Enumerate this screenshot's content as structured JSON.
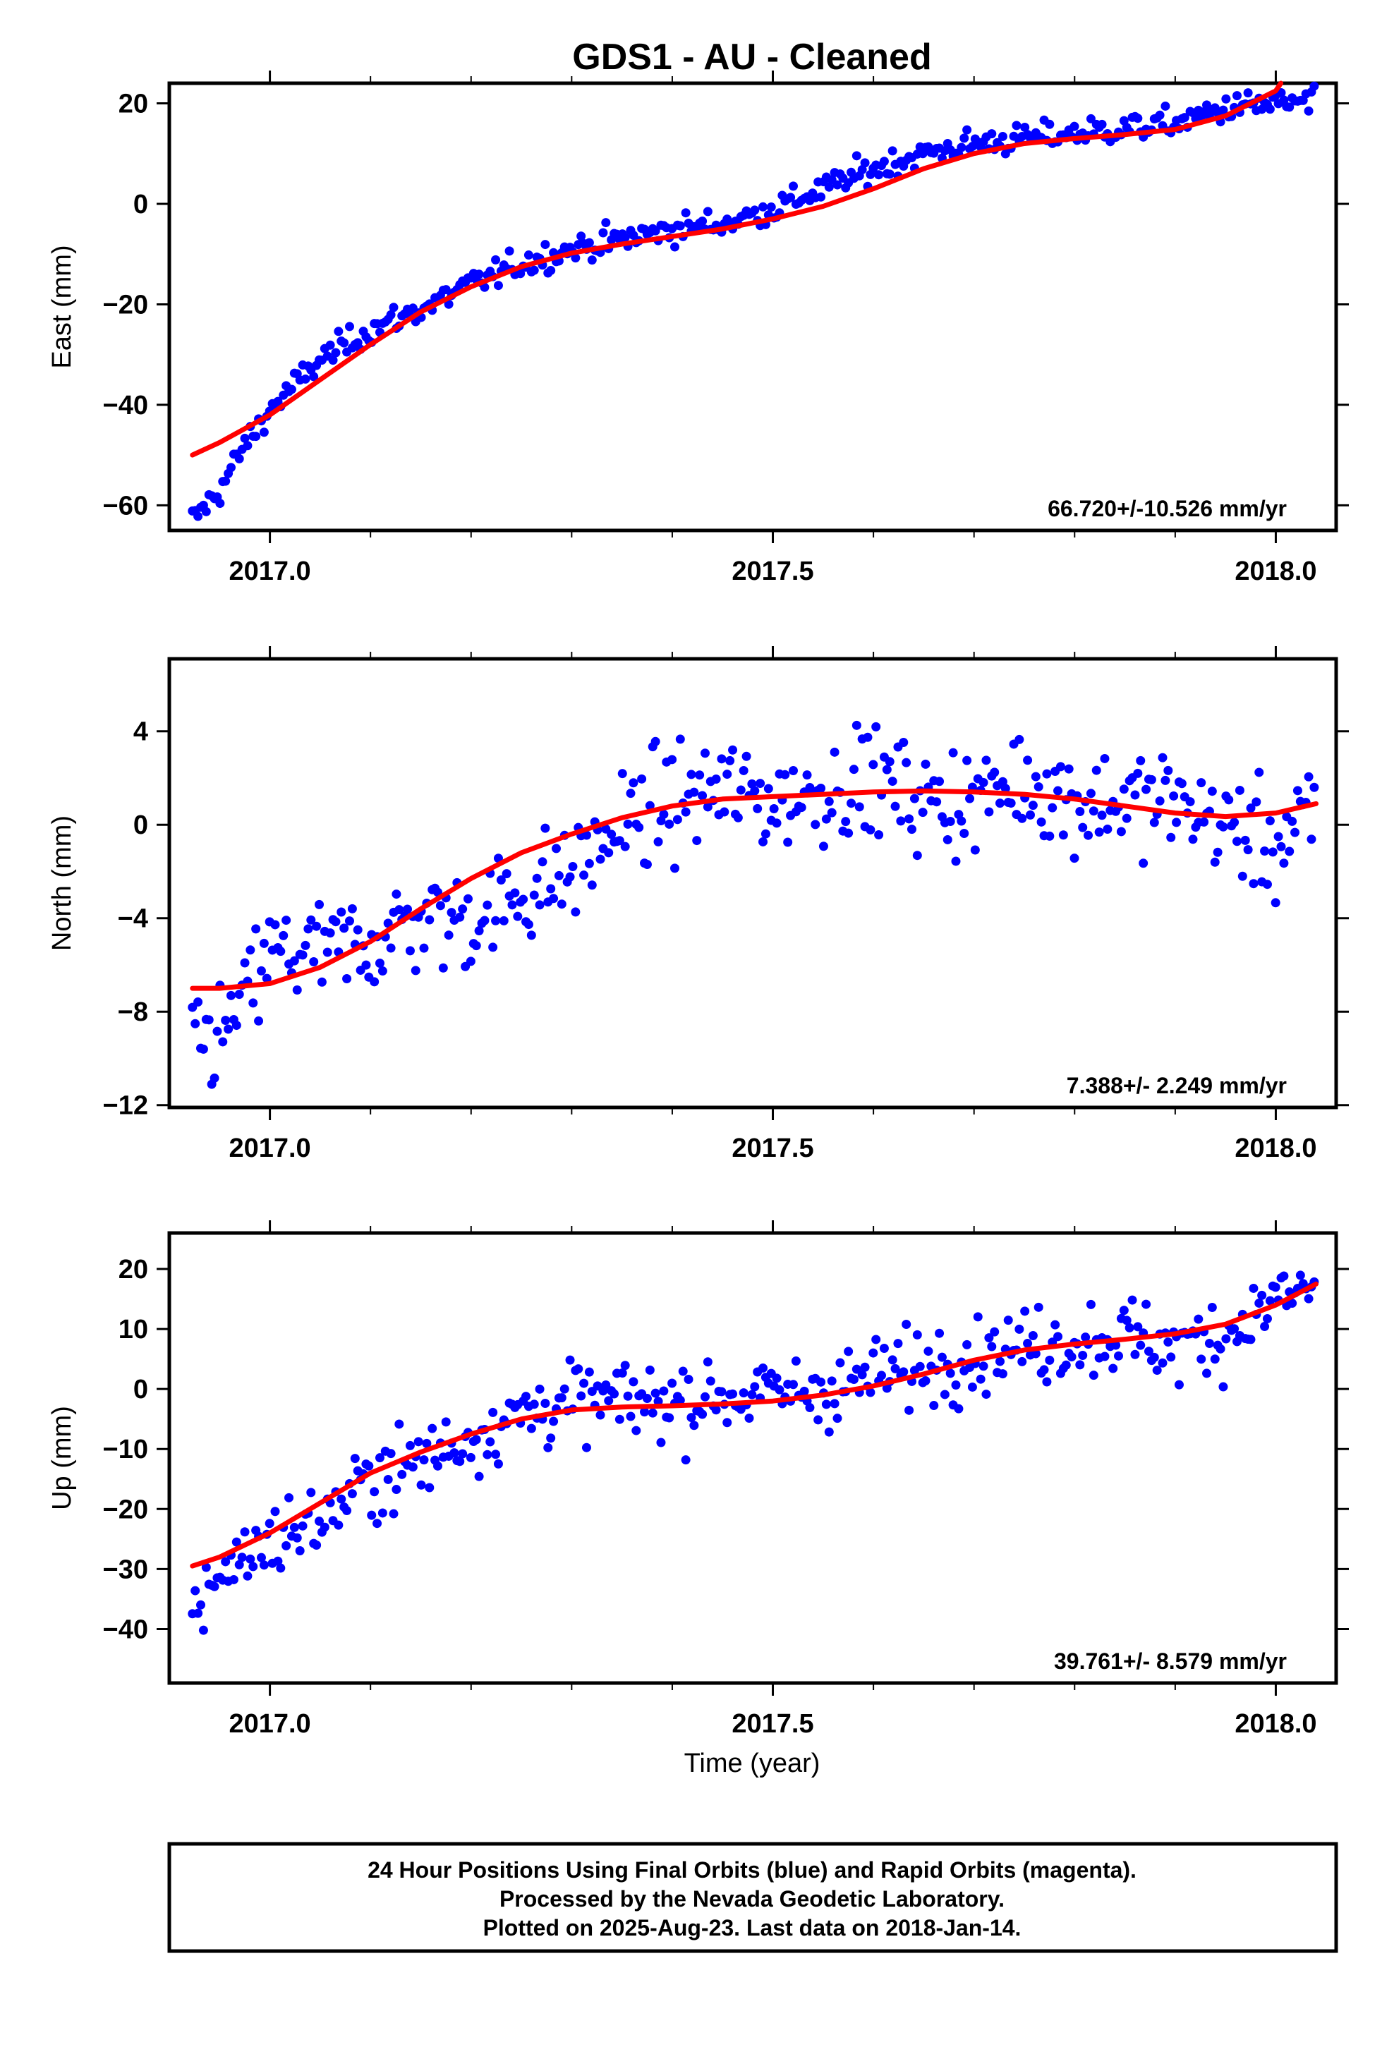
{
  "figure": {
    "title": "GDS1  - AU - Cleaned",
    "xlabel": "Time (year)",
    "footer": [
      "24 Hour Positions Using Final Orbits (blue) and Rapid Orbits (magenta).",
      "Processed by the Nevada Geodetic Laboratory.",
      "Plotted on 2025-Aug-23. Last data on 2018-Jan-14."
    ],
    "colors": {
      "points": "#0000ff",
      "fit": "#ff0000",
      "frame": "#000000"
    }
  },
  "chart_data": [
    {
      "type": "scatter",
      "ylabel": "East (mm)",
      "xlim": [
        2016.9,
        2018.06
      ],
      "ylim": [
        -65,
        24
      ],
      "xticks": [
        2017.0,
        2017.5,
        2018.0
      ],
      "xtick_labels": [
        "2017.0",
        "2017.5",
        "2018.0"
      ],
      "yticks": [
        -60,
        -40,
        -20,
        0,
        20
      ],
      "ytick_labels": [
        "−60",
        "−40",
        "−20",
        "0",
        "20"
      ],
      "rate": "66.720+/-10.526 mm/yr",
      "series": [
        {
          "kind": "points",
          "x": [
            2016.923,
            2016.95,
            2016.975,
            2017.0,
            2017.05,
            2017.1,
            2017.15,
            2017.2,
            2017.25,
            2017.3,
            2017.35,
            2017.4,
            2017.45,
            2017.5,
            2017.55,
            2017.6,
            2017.65,
            2017.7,
            2017.75,
            2017.8,
            2017.85,
            2017.9,
            2017.95,
            2018.0,
            2018.04
          ],
          "y": [
            -63,
            -57,
            -48,
            -41,
            -31,
            -25,
            -21,
            -16,
            -12,
            -9,
            -7,
            -5,
            -4,
            -1,
            3,
            7,
            10,
            12,
            13,
            14,
            15,
            16,
            19,
            20,
            20
          ]
        },
        {
          "kind": "fit",
          "x": [
            2016.923,
            2016.95,
            2017.0,
            2017.05,
            2017.1,
            2017.15,
            2017.2,
            2017.25,
            2017.3,
            2017.35,
            2017.4,
            2017.45,
            2017.5,
            2017.55,
            2017.6,
            2017.65,
            2017.7,
            2017.75,
            2017.8,
            2017.85,
            2017.9,
            2017.95,
            2018.0,
            2018.005
          ],
          "y": [
            -50,
            -47.5,
            -42,
            -35,
            -28,
            -21.5,
            -16.5,
            -12.5,
            -9.8,
            -8,
            -6.5,
            -5,
            -3,
            -0.5,
            3,
            7,
            10,
            12,
            13,
            13.8,
            14.8,
            17.5,
            22.5,
            24
          ]
        }
      ]
    },
    {
      "type": "scatter",
      "ylabel": "North (mm)",
      "xlim": [
        2016.9,
        2018.06
      ],
      "ylim": [
        -12.1,
        7.1
      ],
      "xticks": [
        2017.0,
        2017.5,
        2018.0
      ],
      "xtick_labels": [
        "2017.0",
        "2017.5",
        "2018.0"
      ],
      "yticks": [
        -12,
        -8,
        -4,
        0,
        4
      ],
      "ytick_labels": [
        "−12",
        "−8",
        "−4",
        "0",
        "4"
      ],
      "rate": "7.388+/- 2.249 mm/yr",
      "series": [
        {
          "kind": "points",
          "x": [
            2016.923,
            2016.95,
            2016.975,
            2017.0,
            2017.05,
            2017.1,
            2017.15,
            2017.2,
            2017.25,
            2017.3,
            2017.35,
            2017.4,
            2017.45,
            2017.5,
            2017.55,
            2017.6,
            2017.65,
            2017.7,
            2017.75,
            2017.8,
            2017.85,
            2017.9,
            2017.95,
            2018.0,
            2018.04
          ],
          "y": [
            -8.9,
            -9.2,
            -7.5,
            -5.5,
            -5.5,
            -5,
            -4,
            -4,
            -3,
            -2,
            0,
            1,
            1.5,
            1,
            1.5,
            2,
            1,
            1,
            2,
            1,
            1,
            1,
            0,
            -1,
            0.5
          ]
        },
        {
          "kind": "fit",
          "x": [
            2016.923,
            2016.95,
            2017.0,
            2017.05,
            2017.1,
            2017.15,
            2017.2,
            2017.25,
            2017.3,
            2017.35,
            2017.4,
            2017.45,
            2017.5,
            2017.55,
            2017.6,
            2017.65,
            2017.7,
            2017.75,
            2017.8,
            2017.85,
            2017.9,
            2017.95,
            2018.0,
            2018.04
          ],
          "y": [
            -7,
            -7,
            -6.8,
            -6.1,
            -5,
            -3.6,
            -2.3,
            -1.2,
            -0.4,
            0.3,
            0.8,
            1.1,
            1.2,
            1.3,
            1.4,
            1.45,
            1.4,
            1.3,
            1.1,
            0.8,
            0.5,
            0.35,
            0.5,
            0.9
          ]
        }
      ]
    },
    {
      "type": "scatter",
      "ylabel": "Up (mm)",
      "xlim": [
        2016.9,
        2018.06
      ],
      "ylim": [
        -49,
        26
      ],
      "xticks": [
        2017.0,
        2017.5,
        2018.0
      ],
      "xtick_labels": [
        "2017.0",
        "2017.5",
        "2018.0"
      ],
      "yticks": [
        -40,
        -30,
        -20,
        -10,
        0,
        10,
        20
      ],
      "ytick_labels": [
        "−40",
        "−30",
        "−20",
        "−10",
        "0",
        "10",
        "20"
      ],
      "rate": "39.761+/- 8.579 mm/yr",
      "series": [
        {
          "kind": "points",
          "x": [
            2016.923,
            2016.95,
            2016.975,
            2017.0,
            2017.05,
            2017.1,
            2017.15,
            2017.2,
            2017.25,
            2017.3,
            2017.35,
            2017.4,
            2017.45,
            2017.5,
            2017.55,
            2017.6,
            2017.65,
            2017.7,
            2017.75,
            2017.8,
            2017.85,
            2017.9,
            2017.95,
            2018.0,
            2018.04
          ],
          "y": [
            -38,
            -30,
            -28,
            -25,
            -22,
            -15,
            -12,
            -8,
            -4,
            -2,
            -2,
            -2,
            -1,
            -1,
            0,
            2,
            4,
            6,
            7,
            8,
            9,
            7,
            9,
            15,
            17
          ]
        },
        {
          "kind": "fit",
          "x": [
            2016.923,
            2016.95,
            2017.0,
            2017.05,
            2017.1,
            2017.15,
            2017.2,
            2017.25,
            2017.3,
            2017.35,
            2017.4,
            2017.45,
            2017.5,
            2017.55,
            2017.6,
            2017.65,
            2017.7,
            2017.75,
            2017.8,
            2017.85,
            2017.9,
            2017.95,
            2018.0,
            2018.04
          ],
          "y": [
            -29.5,
            -28,
            -24,
            -19,
            -14,
            -10.5,
            -7.5,
            -5,
            -3.5,
            -3,
            -2.8,
            -2.5,
            -2,
            -1,
            0.5,
            2.5,
            4.8,
            6.5,
            7.5,
            8.3,
            9.2,
            10.8,
            14,
            17.5
          ]
        }
      ]
    }
  ]
}
